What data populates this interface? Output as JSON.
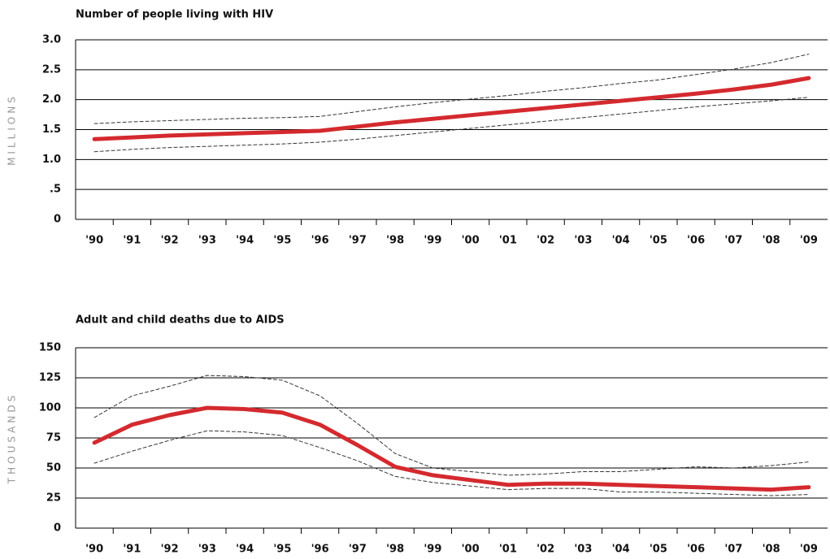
{
  "chart_data": [
    {
      "type": "line",
      "title": "Number of people living with HIV",
      "ylabel": "MILLIONS",
      "categories": [
        "'90",
        "'91",
        "'92",
        "'93",
        "'94",
        "'95",
        "'96",
        "'97",
        "'98",
        "'99",
        "'00",
        "'01",
        "'02",
        "'03",
        "'04",
        "'05",
        "'06",
        "'07",
        "'08",
        "'09"
      ],
      "series": [
        {
          "color": "#333333",
          "dashed": true,
          "values": [
            1.6,
            1.63,
            1.65,
            1.67,
            1.69,
            1.7,
            1.72,
            1.8,
            1.88,
            1.95,
            2.01,
            2.07,
            2.14,
            2.2,
            2.27,
            2.33,
            2.42,
            2.51,
            2.62,
            2.76
          ]
        },
        {
          "color": "#333333",
          "dashed": true,
          "values": [
            1.13,
            1.17,
            1.2,
            1.22,
            1.24,
            1.26,
            1.29,
            1.34,
            1.4,
            1.46,
            1.52,
            1.58,
            1.64,
            1.7,
            1.76,
            1.82,
            1.88,
            1.93,
            1.98,
            2.04
          ]
        },
        {
          "color": "#d42a2f",
          "dashed": false,
          "values": [
            1.34,
            1.37,
            1.4,
            1.42,
            1.44,
            1.46,
            1.48,
            1.55,
            1.62,
            1.68,
            1.74,
            1.8,
            1.86,
            1.92,
            1.98,
            2.04,
            2.1,
            2.17,
            2.25,
            2.36
          ]
        }
      ],
      "ylim": [
        0,
        3
      ],
      "yticks": [
        0,
        {
          "value": 0.5,
          "label": ".5"
        },
        {
          "value": 1,
          "label": "1.0"
        },
        1.5,
        {
          "value": 2,
          "label": "2.0"
        },
        2.5,
        {
          "value": 3,
          "label": "3.0"
        }
      ],
      "grid": true
    },
    {
      "type": "line",
      "title": "Adult and child deaths due to AIDS",
      "ylabel": "THOUSANDS",
      "categories": [
        "'90",
        "'91",
        "'92",
        "'93",
        "'94",
        "'95",
        "'96",
        "'97",
        "'98",
        "'99",
        "'00",
        "'01",
        "'02",
        "'03",
        "'04",
        "'05",
        "'06",
        "'07",
        "'08",
        "'09"
      ],
      "series": [
        {
          "color": "#333333",
          "dashed": true,
          "values": [
            92,
            110,
            118,
            127,
            126,
            123,
            110,
            87,
            62,
            50,
            47,
            44,
            45,
            47,
            47,
            49,
            51,
            50,
            52,
            55
          ]
        },
        {
          "color": "#333333",
          "dashed": true,
          "values": [
            54,
            64,
            73,
            81,
            80,
            77,
            67,
            56,
            43,
            38,
            35,
            32,
            33,
            33,
            30,
            30,
            29,
            28,
            27,
            28
          ]
        },
        {
          "color": "#d42a2f",
          "dashed": false,
          "values": [
            71,
            86,
            94,
            100,
            99,
            96,
            86,
            69,
            51,
            44,
            40,
            36,
            37,
            37,
            36,
            35,
            34,
            33,
            32,
            34
          ]
        }
      ],
      "ylim": [
        0,
        150
      ],
      "yticks": [
        0,
        25,
        50,
        75,
        100,
        125,
        150
      ],
      "grid": true
    }
  ]
}
